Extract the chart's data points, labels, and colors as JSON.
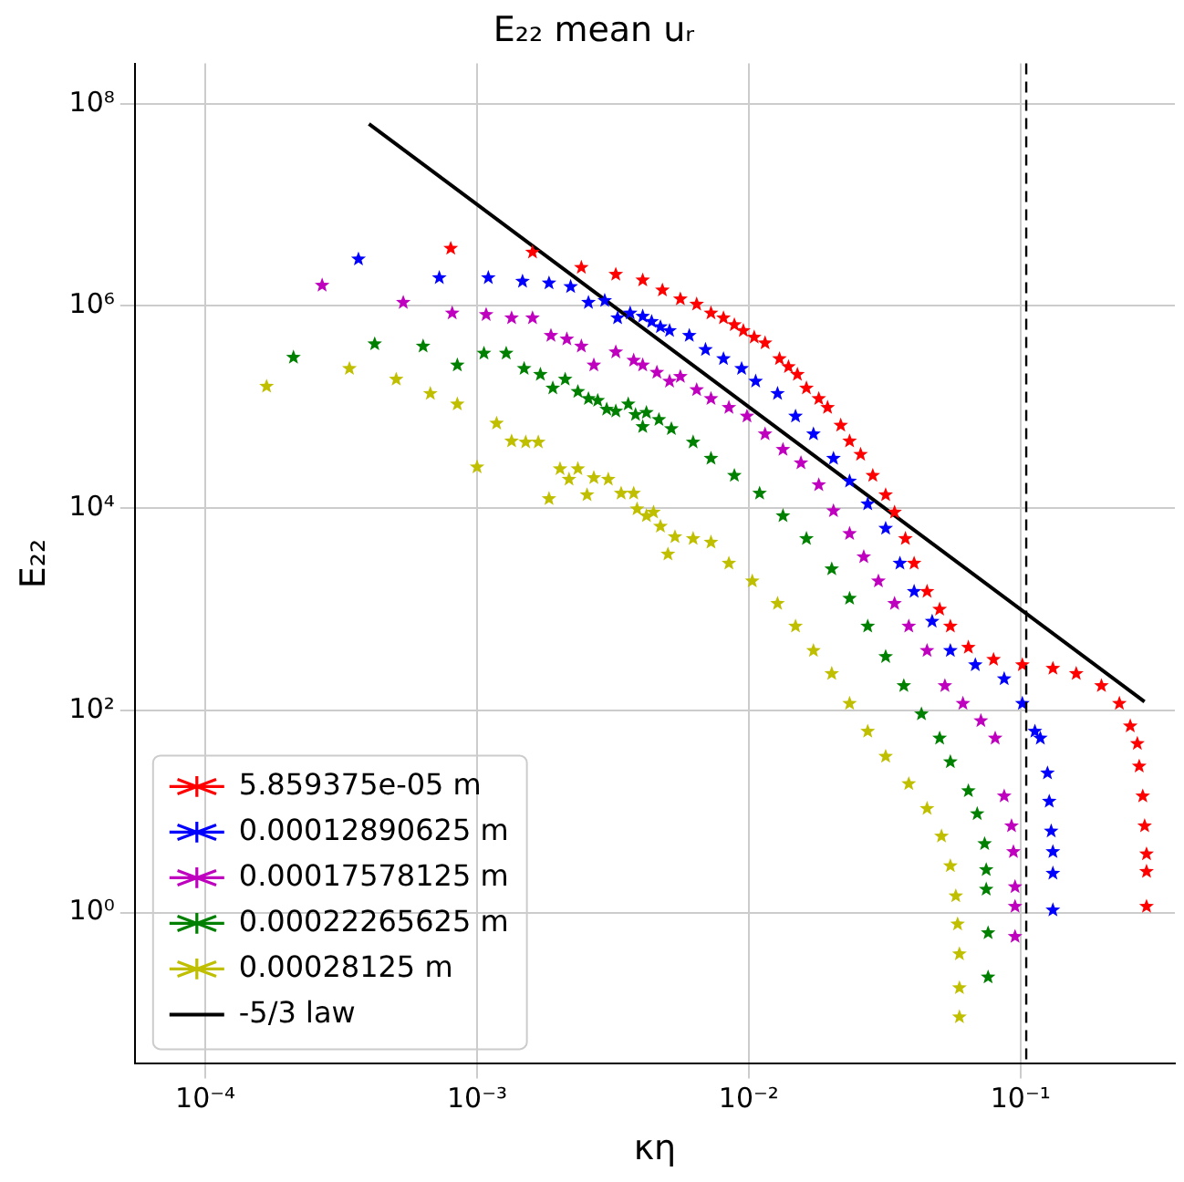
{
  "chart_data": {
    "type": "scatter",
    "title": "E₂₂ mean uᵣ",
    "xlabel": "κη",
    "ylabel": "E₂₂",
    "log": "xy",
    "grid": true,
    "legend": "bottom left",
    "marker": "star",
    "xlim": [
      5.5e-05,
      0.37
    ],
    "ylim": [
      0.032,
      250000000.0
    ],
    "xticks": [
      {
        "value": 0.0001,
        "label": "10⁻⁴"
      },
      {
        "value": 0.001,
        "label": "10⁻³"
      },
      {
        "value": 0.01,
        "label": "10⁻²"
      },
      {
        "value": 0.1,
        "label": "10⁻¹"
      }
    ],
    "yticks": [
      {
        "value": 1,
        "label": "10⁰"
      },
      {
        "value": 100,
        "label": "10²"
      },
      {
        "value": 10000,
        "label": "10⁴"
      },
      {
        "value": 1000000,
        "label": "10⁶"
      },
      {
        "value": 100000000,
        "label": "10⁸"
      }
    ],
    "ref_lines": [
      {
        "axis": "x",
        "value": 0.105,
        "color": "#000000",
        "line_style": "dashed"
      }
    ],
    "series": [
      {
        "name": "5.859375e-05 m",
        "color": "#ff0000",
        "x": [
          0.0008,
          0.0016,
          0.00242,
          0.00324,
          0.00407,
          0.00481,
          0.0056,
          0.00643,
          0.00726,
          0.00807,
          0.00885,
          0.00955,
          0.01047,
          0.01148,
          0.01297,
          0.014,
          0.0151,
          0.0163,
          0.0181,
          0.0195,
          0.0218,
          0.0235,
          0.0258,
          0.0286,
          0.0319,
          0.0344,
          0.0377,
          0.0406,
          0.0453,
          0.0504,
          0.0552,
          0.0643,
          0.0796,
          0.1016,
          0.1316,
          0.1604,
          0.1986,
          0.2312,
          0.2535,
          0.2692,
          0.2735,
          0.2818,
          0.2864,
          0.291,
          0.291,
          0.291
        ],
        "values": [
          3700000,
          3400000,
          2400000,
          2050000,
          1800000,
          1430000,
          1170000,
          1040000,
          850000,
          760000,
          650000,
          570000,
          490000,
          430000,
          300000,
          250000,
          210000,
          154000,
          121000,
          99000,
          66000,
          46000,
          34000,
          21000,
          13500,
          9100,
          5000,
          2850,
          1500,
          1000,
          680,
          420,
          318,
          282,
          260,
          231,
          175,
          117,
          70,
          47,
          28,
          14.2,
          7.2,
          3.8,
          2.55,
          1.15
        ]
      },
      {
        "name": "0.00012890625 m",
        "color": "#0000ff",
        "x": [
          0.000366,
          0.000726,
          0.0011,
          0.00147,
          0.00184,
          0.00221,
          0.00257,
          0.00295,
          0.00329,
          0.00366,
          0.00407,
          0.00439,
          0.00473,
          0.00511,
          0.00604,
          0.00693,
          0.00807,
          0.00941,
          0.0106,
          0.01276,
          0.01486,
          0.0173,
          0.0205,
          0.0235,
          0.0274,
          0.0319,
          0.036,
          0.0406,
          0.0473,
          0.0552,
          0.0682,
          0.0871,
          0.1016,
          0.113,
          0.1183,
          0.1257,
          0.1276,
          0.1297,
          0.1316,
          0.1316,
          0.1316
        ],
        "values": [
          2900000,
          1900000,
          1900000,
          1750000,
          1680000,
          1550000,
          1080000,
          1130000,
          760000,
          850000,
          790000,
          700000,
          620000,
          570000,
          510000,
          370000,
          300000,
          240000,
          180000,
          136000,
          81000,
          54000,
          31000,
          18500,
          11000,
          6300,
          2850,
          1500,
          760,
          390,
          282,
          205,
          117,
          62,
          53,
          24,
          12.6,
          6.4,
          4.0,
          2.45,
          1.06
        ]
      },
      {
        "name": "0.00017578125 m",
        "color": "#bf00bf",
        "x": [
          0.000269,
          0.000535,
          0.00081,
          0.00108,
          0.00134,
          0.0016,
          0.00187,
          0.00214,
          0.00242,
          0.00269,
          0.00324,
          0.00377,
          0.00407,
          0.00459,
          0.00511,
          0.0056,
          0.00643,
          0.00726,
          0.00845,
          0.00985,
          0.01148,
          0.01336,
          0.01556,
          0.0181,
          0.0205,
          0.0235,
          0.0265,
          0.03,
          0.0344,
          0.0388,
          0.0453,
          0.0527,
          0.0614,
          0.0715,
          0.0807,
          0.0871,
          0.0927,
          0.0942,
          0.0955,
          0.0955,
          0.0955
        ],
        "values": [
          1600000,
          1080000,
          850000,
          820000,
          760000,
          760000,
          510000,
          470000,
          400000,
          260000,
          350000,
          290000,
          260000,
          220000,
          180000,
          200000,
          148000,
          121000,
          99000,
          81000,
          54000,
          38000,
          28000,
          17000,
          9400,
          5600,
          3300,
          1900,
          1140,
          680,
          390,
          175,
          117,
          79,
          53,
          14.2,
          7.2,
          4.0,
          1.8,
          1.15,
          0.58
        ]
      },
      {
        "name": "0.00022265625 m",
        "color": "#008000",
        "x": [
          0.000211,
          0.00042,
          0.000633,
          0.000846,
          0.00106,
          0.00128,
          0.00149,
          0.00171,
          0.0019,
          0.00211,
          0.00235,
          0.00257,
          0.00278,
          0.003,
          0.00324,
          0.0036,
          0.00383,
          0.00407,
          0.0042,
          0.00467,
          0.00519,
          0.00624,
          0.00726,
          0.00885,
          0.01096,
          0.01336,
          0.0163,
          0.0202,
          0.0235,
          0.0274,
          0.0319,
          0.0372,
          0.0432,
          0.0504,
          0.0552,
          0.0643,
          0.0693,
          0.0738,
          0.0748,
          0.0748,
          0.076,
          0.076
        ],
        "values": [
          310000,
          420000,
          400000,
          260000,
          340000,
          340000,
          240000,
          210000,
          154000,
          188000,
          142000,
          121000,
          116000,
          95000,
          91000,
          107000,
          84000,
          64000,
          88000,
          75000,
          61000,
          45000,
          31000,
          21000,
          14000,
          8400,
          5000,
          2500,
          1280,
          680,
          340,
          175,
          92,
          53,
          31,
          16,
          9.5,
          4.8,
          2.65,
          1.7,
          0.63,
          0.23
        ]
      },
      {
        "name": "0.00028125 m",
        "color": "#bfbf00",
        "x": [
          0.000168,
          0.000339,
          0.000504,
          0.000673,
          0.000846,
          0.001,
          0.00118,
          0.00134,
          0.00151,
          0.00168,
          0.00184,
          0.00202,
          0.00218,
          0.00235,
          0.00254,
          0.00269,
          0.00304,
          0.00339,
          0.00377,
          0.00388,
          0.0042,
          0.00446,
          0.00473,
          0.00504,
          0.00535,
          0.00624,
          0.00726,
          0.00845,
          0.0103,
          0.01276,
          0.01486,
          0.0173,
          0.0202,
          0.0235,
          0.0274,
          0.0319,
          0.0388,
          0.0453,
          0.0512,
          0.0552,
          0.0578,
          0.0587,
          0.0596,
          0.0596,
          0.0596
        ],
        "values": [
          160000,
          240000,
          188000,
          136000,
          107000,
          25500,
          69000,
          46000,
          45000,
          45000,
          12400,
          24500,
          19300,
          24500,
          13500,
          20000,
          19300,
          14000,
          14000,
          9800,
          8400,
          9100,
          6600,
          3500,
          5200,
          5000,
          4600,
          2850,
          1900,
          1140,
          680,
          390,
          231,
          117,
          62,
          35,
          18.8,
          10.7,
          5.7,
          2.9,
          1.46,
          0.77,
          0.39,
          0.18,
          0.093
        ]
      },
      {
        "name": "-5/3 law",
        "type": "line",
        "marker": "none",
        "line_style": "solid",
        "color": "#000000",
        "x": [
          0.0004,
          0.286
        ],
        "values": [
          63000000,
          122
        ]
      }
    ]
  }
}
